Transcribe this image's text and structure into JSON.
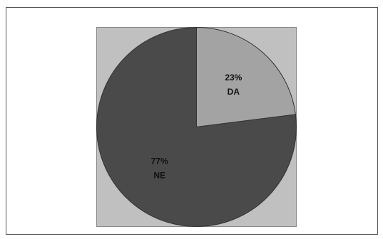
{
  "chart_data": {
    "type": "pie",
    "categories": [
      "DA",
      "NE"
    ],
    "values": [
      23,
      77
    ],
    "value_labels": [
      "23%",
      "77%"
    ],
    "colors": [
      "#a3a3a3",
      "#4a4a4a"
    ],
    "start_angle": 0,
    "direction": "clockwise"
  }
}
